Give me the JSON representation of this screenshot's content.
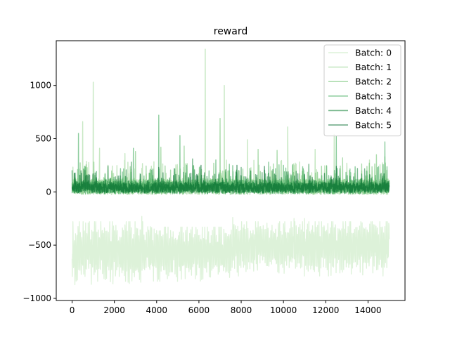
{
  "chart_data": {
    "type": "line",
    "title": "reward",
    "xlabel": "",
    "ylabel": "",
    "xlim": [
      -750,
      15750
    ],
    "ylim": [
      -1020,
      1420
    ],
    "x_ticks": [
      0,
      2000,
      4000,
      6000,
      8000,
      10000,
      12000,
      14000
    ],
    "x_tick_labels": [
      "0",
      "2000",
      "4000",
      "6000",
      "8000",
      "10000",
      "12000",
      "14000"
    ],
    "y_ticks": [
      -1000,
      -500,
      0,
      500,
      1000
    ],
    "y_tick_labels": [
      "−1000",
      "−500",
      "0",
      "500",
      "1000"
    ],
    "legend_position": "top-right",
    "grid": false,
    "x_max": 15000,
    "series": [
      {
        "name": "Batch: 0",
        "color": "#c7e9c0",
        "alpha": 0.6,
        "baseline": -600,
        "envelope": [
          {
            "from": 0,
            "to": 3800,
            "lo": -880,
            "hi": -280
          },
          {
            "from": 3800,
            "to": 7600,
            "lo": -840,
            "hi": -330
          },
          {
            "from": 7600,
            "to": 15000,
            "lo": -790,
            "hi": -280
          }
        ],
        "peaks": [
          [
            3300,
            -230
          ],
          [
            7600,
            -240
          ],
          [
            10500,
            -250
          ],
          [
            11000,
            -250
          ]
        ]
      },
      {
        "name": "Batch: 1",
        "color": "#a1d99b",
        "alpha": 0.6,
        "baseline": 20,
        "band": [
          -30,
          160
        ],
        "peaks": [
          [
            500,
            660
          ],
          [
            1000,
            1030
          ],
          [
            1300,
            410
          ],
          [
            2500,
            360
          ],
          [
            6300,
            1340
          ],
          [
            7200,
            1000
          ],
          [
            8300,
            490
          ],
          [
            10200,
            610
          ],
          [
            11500,
            400
          ],
          [
            12400,
            540
          ],
          [
            14800,
            330
          ]
        ]
      },
      {
        "name": "Batch: 2",
        "color": "#74c476",
        "alpha": 0.6,
        "baseline": 20,
        "band": [
          -30,
          150
        ],
        "peaks": [
          [
            3000,
            380
          ],
          [
            4200,
            420
          ],
          [
            5300,
            430
          ],
          [
            7000,
            690
          ],
          [
            8800,
            400
          ],
          [
            9700,
            390
          ],
          [
            12800,
            320
          ],
          [
            14400,
            350
          ]
        ]
      },
      {
        "name": "Batch: 3",
        "color": "#41ab5d",
        "alpha": 0.6,
        "baseline": 20,
        "band": [
          -20,
          140
        ],
        "peaks": [
          [
            300,
            550
          ],
          [
            2900,
            410
          ],
          [
            4100,
            720
          ],
          [
            5100,
            530
          ],
          [
            6800,
            300
          ],
          [
            9300,
            280
          ],
          [
            12500,
            520
          ],
          [
            14800,
            470
          ]
        ]
      },
      {
        "name": "Batch: 4",
        "color": "#238b45",
        "alpha": 0.6,
        "baseline": 20,
        "band": [
          -15,
          120
        ],
        "peaks": [
          [
            1700,
            240
          ],
          [
            2800,
            280
          ],
          [
            5700,
            310
          ],
          [
            8000,
            230
          ],
          [
            11200,
            260
          ],
          [
            13500,
            220
          ]
        ]
      },
      {
        "name": "Batch: 5",
        "color": "#006d2c",
        "alpha": 0.6,
        "baseline": 20,
        "band": [
          -10,
          100
        ],
        "peaks": [
          [
            4100,
            230
          ],
          [
            6100,
            250
          ],
          [
            7800,
            250
          ],
          [
            9100,
            240
          ],
          [
            12500,
            240
          ]
        ]
      }
    ]
  }
}
